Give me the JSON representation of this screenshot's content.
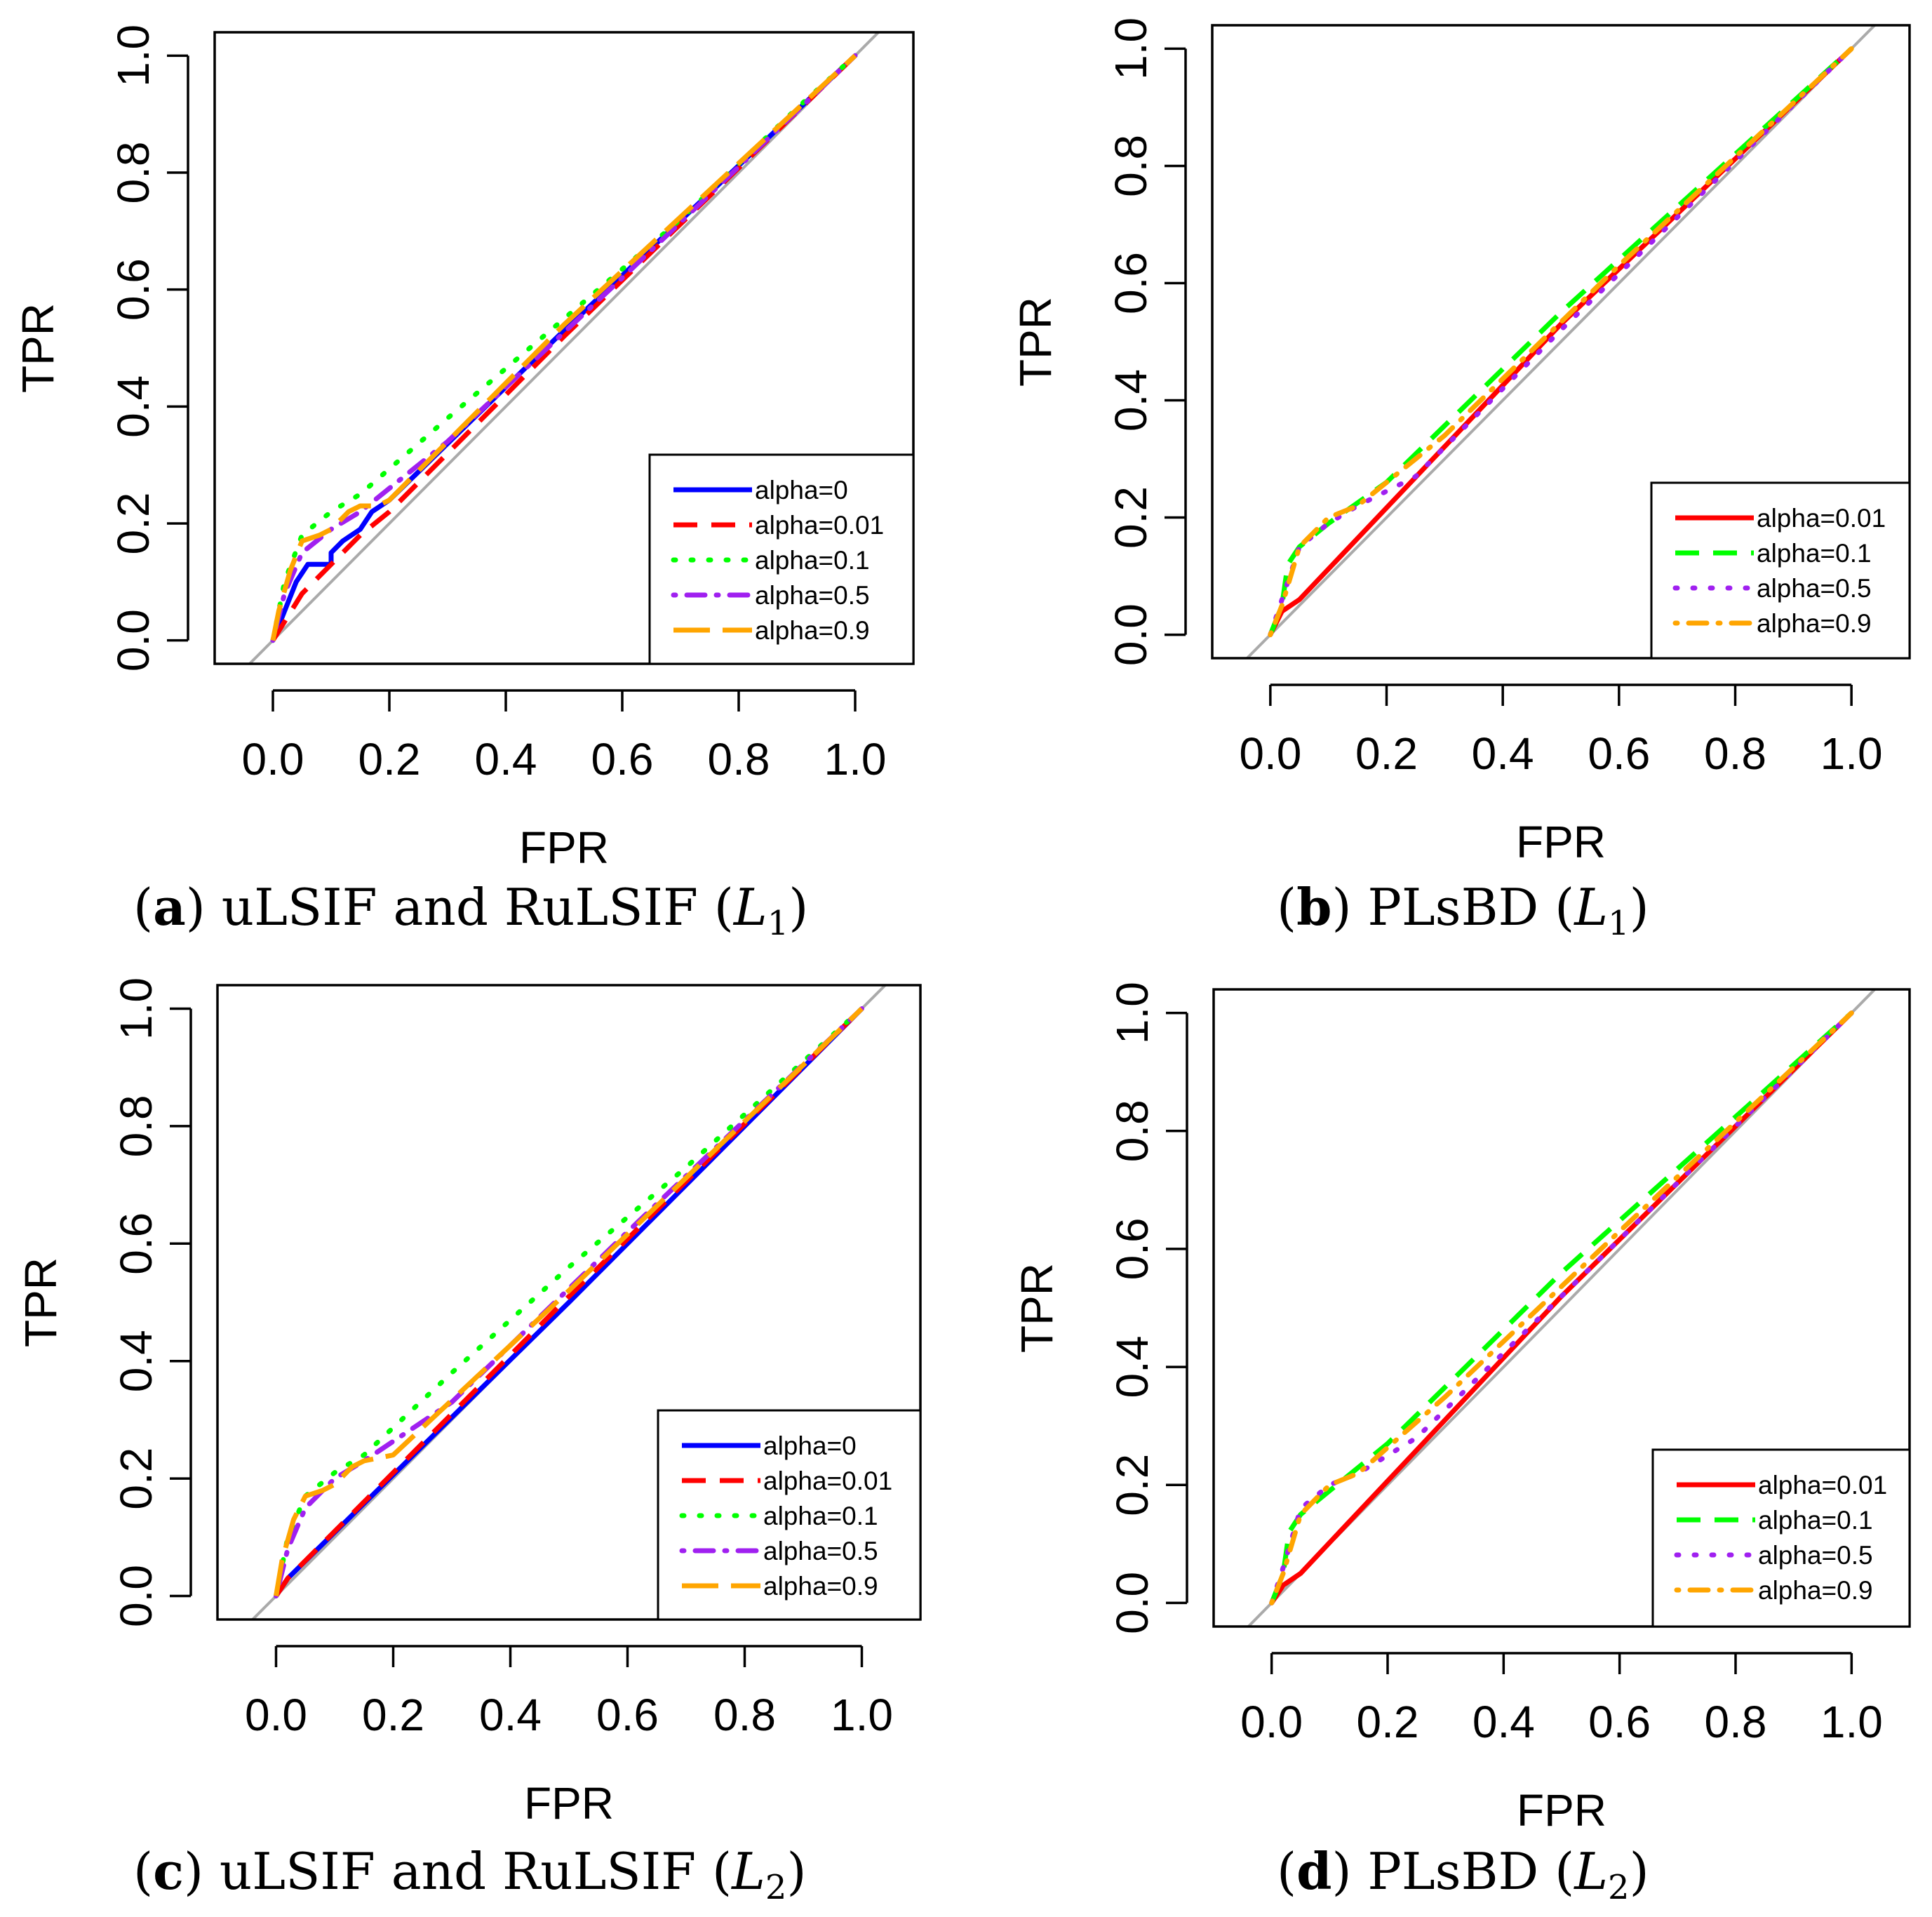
{
  "colors": {
    "alpha=0": "#0000ff",
    "alpha=0.01": "#ff0000",
    "alpha=0.1": "#00ff00",
    "alpha=0.5": "#a020f0",
    "alpha=0.9": "#ffa500",
    "diagonal": "#aaaaaa"
  },
  "chart_data": [
    {
      "id": "a",
      "type": "line",
      "caption": {
        "letter": "(a)",
        "text": "uLSIF and RuLSIF",
        "math_base": "L",
        "math_sub": "1",
        "close": ")"
      },
      "xlabel": "FPR",
      "ylabel": "TPR",
      "xlim": [
        -0.1,
        1.1
      ],
      "ylim": [
        -0.04,
        1.04
      ],
      "xticks": [
        "0.0",
        "0.2",
        "0.4",
        "0.6",
        "0.8",
        "1.0"
      ],
      "yticks": [
        "0.0",
        "0.2",
        "0.4",
        "0.6",
        "0.8",
        "1.0"
      ],
      "grid": false,
      "legend_position": "bottom-right",
      "series": [
        {
          "name": "alpha=0",
          "style": "solid",
          "x": [
            0,
            0.02,
            0.04,
            0.06,
            0.1,
            0.1,
            0.12,
            0.15,
            0.17,
            0.2,
            0.5,
            1.0
          ],
          "y": [
            0,
            0.05,
            0.1,
            0.13,
            0.13,
            0.15,
            0.17,
            0.19,
            0.22,
            0.24,
            0.53,
            1.0
          ]
        },
        {
          "name": "alpha=0.01",
          "style": "dashed",
          "x": [
            0,
            0.05,
            0.1,
            0.15,
            0.2,
            0.5,
            1.0
          ],
          "y": [
            0,
            0.08,
            0.13,
            0.18,
            0.22,
            0.52,
            1.0
          ]
        },
        {
          "name": "alpha=0.1",
          "style": "dotted",
          "x": [
            0,
            0.02,
            0.05,
            0.1,
            0.15,
            0.3,
            0.5,
            0.7,
            0.9,
            1.0
          ],
          "y": [
            0,
            0.1,
            0.18,
            0.22,
            0.25,
            0.38,
            0.55,
            0.72,
            0.91,
            1.0
          ]
        },
        {
          "name": "alpha=0.5",
          "style": "dotdash",
          "x": [
            0,
            0.02,
            0.05,
            0.1,
            0.15,
            0.3,
            0.6,
            1.0
          ],
          "y": [
            0,
            0.08,
            0.15,
            0.19,
            0.22,
            0.34,
            0.62,
            1.0
          ]
        },
        {
          "name": "alpha=0.9",
          "style": "longdash",
          "x": [
            0,
            0.01,
            0.03,
            0.05,
            0.08,
            0.1,
            0.13,
            0.15,
            0.18,
            0.2,
            0.5,
            1.0
          ],
          "y": [
            0,
            0.05,
            0.12,
            0.17,
            0.18,
            0.19,
            0.22,
            0.23,
            0.23,
            0.24,
            0.54,
            1.0
          ]
        }
      ]
    },
    {
      "id": "b",
      "type": "line",
      "caption": {
        "letter": "(b)",
        "text": "PLsBD",
        "math_base": "L",
        "math_sub": "1",
        "close": ")"
      },
      "xlabel": "FPR",
      "ylabel": "TPR",
      "xlim": [
        -0.1,
        1.1
      ],
      "ylim": [
        -0.04,
        1.04
      ],
      "xticks": [
        "0.0",
        "0.2",
        "0.4",
        "0.6",
        "0.8",
        "1.0"
      ],
      "yticks": [
        "0.0",
        "0.2",
        "0.4",
        "0.6",
        "0.8",
        "1.0"
      ],
      "grid": false,
      "legend_position": "bottom-right",
      "series": [
        {
          "name": "alpha=0.01",
          "style": "solid",
          "x": [
            0,
            0.02,
            0.05,
            0.5,
            1.0
          ],
          "y": [
            0,
            0.04,
            0.06,
            0.53,
            1.0
          ]
        },
        {
          "name": "alpha=0.1",
          "style": "dashed",
          "x": [
            0,
            0.02,
            0.03,
            0.05,
            0.1,
            0.2,
            0.5,
            1.0
          ],
          "y": [
            0,
            0.05,
            0.12,
            0.15,
            0.19,
            0.26,
            0.55,
            1.0
          ]
        },
        {
          "name": "alpha=0.5",
          "style": "dotted",
          "x": [
            0,
            0.02,
            0.05,
            0.1,
            0.15,
            0.25,
            0.5,
            1.0
          ],
          "y": [
            0,
            0.06,
            0.15,
            0.19,
            0.22,
            0.27,
            0.52,
            1.0
          ]
        },
        {
          "name": "alpha=0.9",
          "style": "dotdash",
          "x": [
            0,
            0.02,
            0.05,
            0.1,
            0.15,
            0.3,
            0.6,
            1.0
          ],
          "y": [
            0,
            0.05,
            0.15,
            0.2,
            0.22,
            0.34,
            0.63,
            1.0
          ]
        }
      ]
    },
    {
      "id": "c",
      "type": "line",
      "caption": {
        "letter": "(c)",
        "text": "uLSIF and RuLSIF",
        "math_base": "L",
        "math_sub": "2",
        "close": ")"
      },
      "xlabel": "FPR",
      "ylabel": "TPR",
      "xlim": [
        -0.1,
        1.1
      ],
      "ylim": [
        -0.04,
        1.04
      ],
      "xticks": [
        "0.0",
        "0.2",
        "0.4",
        "0.6",
        "0.8",
        "1.0"
      ],
      "yticks": [
        "0.0",
        "0.2",
        "0.4",
        "0.6",
        "0.8",
        "1.0"
      ],
      "grid": false,
      "legend_position": "bottom-right",
      "series": [
        {
          "name": "alpha=0",
          "style": "solid",
          "x": [
            0,
            0.02,
            0.5,
            1.0
          ],
          "y": [
            0,
            0.03,
            0.5,
            1.0
          ]
        },
        {
          "name": "alpha=0.01",
          "style": "dashed",
          "x": [
            0,
            0.02,
            0.5,
            1.0
          ],
          "y": [
            0,
            0.03,
            0.51,
            1.0
          ]
        },
        {
          "name": "alpha=0.1",
          "style": "dotted",
          "x": [
            0,
            0.02,
            0.05,
            0.1,
            0.15,
            0.3,
            0.5,
            0.7,
            0.9,
            1.0
          ],
          "y": [
            0,
            0.1,
            0.17,
            0.21,
            0.24,
            0.38,
            0.56,
            0.73,
            0.91,
            1.0
          ]
        },
        {
          "name": "alpha=0.5",
          "style": "dotdash",
          "x": [
            0,
            0.02,
            0.05,
            0.1,
            0.15,
            0.3,
            0.6,
            1.0
          ],
          "y": [
            0,
            0.08,
            0.15,
            0.2,
            0.23,
            0.33,
            0.62,
            1.0
          ]
        },
        {
          "name": "alpha=0.9",
          "style": "longdash",
          "x": [
            0,
            0.01,
            0.03,
            0.05,
            0.08,
            0.1,
            0.13,
            0.15,
            0.2,
            0.5,
            1.0
          ],
          "y": [
            0,
            0.06,
            0.13,
            0.17,
            0.18,
            0.19,
            0.22,
            0.23,
            0.24,
            0.52,
            1.0
          ]
        }
      ]
    },
    {
      "id": "d",
      "type": "line",
      "caption": {
        "letter": "(d)",
        "text": "PLsBD",
        "math_base": "L",
        "math_sub": "2",
        "close": ")"
      },
      "xlabel": "FPR",
      "ylabel": "TPR",
      "xlim": [
        -0.1,
        1.1
      ],
      "ylim": [
        -0.04,
        1.04
      ],
      "xticks": [
        "0.0",
        "0.2",
        "0.4",
        "0.6",
        "0.8",
        "1.0"
      ],
      "yticks": [
        "0.0",
        "0.2",
        "0.4",
        "0.6",
        "0.8",
        "1.0"
      ],
      "grid": false,
      "legend_position": "bottom-right",
      "series": [
        {
          "name": "alpha=0.01",
          "style": "solid",
          "x": [
            0,
            0.02,
            0.05,
            0.5,
            1.0
          ],
          "y": [
            0,
            0.03,
            0.05,
            0.52,
            1.0
          ]
        },
        {
          "name": "alpha=0.1",
          "style": "dashed",
          "x": [
            0,
            0.02,
            0.03,
            0.05,
            0.1,
            0.2,
            0.5,
            1.0
          ],
          "y": [
            0,
            0.05,
            0.12,
            0.15,
            0.19,
            0.27,
            0.56,
            1.0
          ]
        },
        {
          "name": "alpha=0.5",
          "style": "dotted",
          "x": [
            0,
            0.02,
            0.05,
            0.1,
            0.15,
            0.25,
            0.5,
            1.0
          ],
          "y": [
            0,
            0.06,
            0.16,
            0.2,
            0.22,
            0.28,
            0.52,
            1.0
          ]
        },
        {
          "name": "alpha=0.9",
          "style": "dotdash",
          "x": [
            0,
            0.02,
            0.05,
            0.1,
            0.15,
            0.3,
            0.6,
            1.0
          ],
          "y": [
            0,
            0.05,
            0.15,
            0.2,
            0.22,
            0.35,
            0.63,
            1.0
          ]
        }
      ]
    }
  ]
}
